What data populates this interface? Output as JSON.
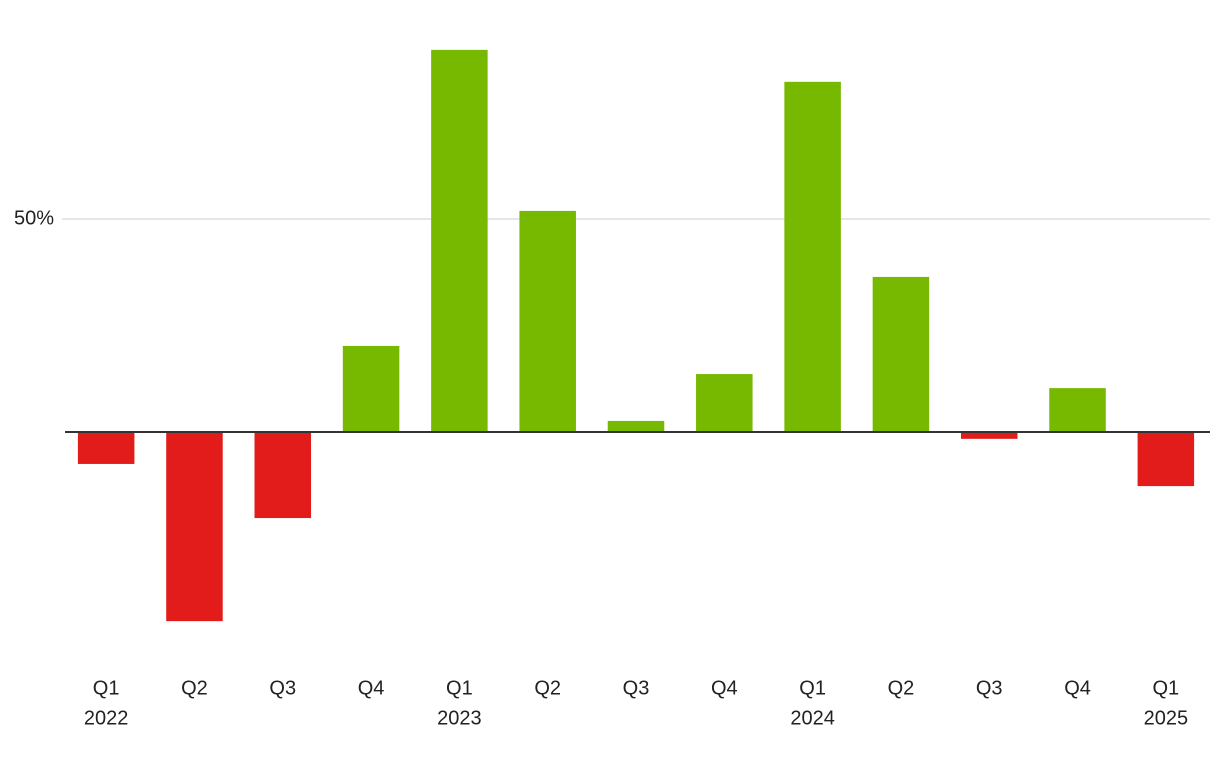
{
  "chart_data": {
    "type": "bar",
    "categories": [
      "Q1",
      "Q2",
      "Q3",
      "Q4",
      "Q1",
      "Q2",
      "Q3",
      "Q4",
      "Q1",
      "Q2",
      "Q3",
      "Q4",
      "Q1"
    ],
    "year_labels": [
      "2022",
      null,
      null,
      null,
      "2023",
      null,
      null,
      null,
      "2024",
      null,
      null,
      null,
      "2025"
    ],
    "values": [
      -7.5,
      -44.4,
      -20.2,
      20.2,
      89.7,
      51.9,
      2.6,
      13.6,
      82.2,
      36.4,
      -1.6,
      10.3,
      -12.7
    ],
    "positive_color": "#77b800",
    "negative_color": "#e21b1b",
    "ylim": [
      -50,
      100
    ],
    "yticks": [
      {
        "value": 50,
        "label": "50%"
      }
    ],
    "grid": true
  }
}
